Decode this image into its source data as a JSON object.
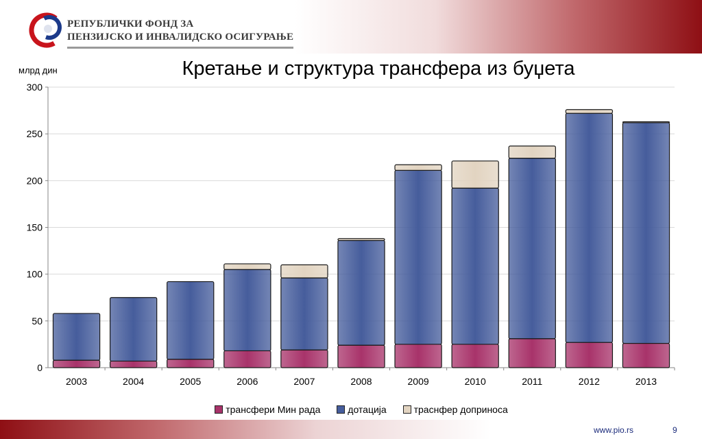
{
  "header": {
    "org_line1": "РЕПУБЛИЧКИ ФОНД ЗА",
    "org_line2": "ПЕНЗИЈСКО И ИНВАЛИДСКО ОСИГУРАЊЕ"
  },
  "footer": {
    "url": "www.pio.rs",
    "page": "9"
  },
  "colors": {
    "series1": "#a8336a",
    "series2": "#465d9c",
    "series3": "#e2d4c1",
    "brand_red": "#8e0f14"
  },
  "chart_data": {
    "type": "bar",
    "stacked": true,
    "title": "Кретање и структура трансфера из буџета",
    "ylabel": "млрд дин",
    "xlabel": "",
    "ylim": [
      0,
      300
    ],
    "yticks": [
      0,
      50,
      100,
      150,
      200,
      250,
      300
    ],
    "grid": true,
    "legend": "bottom",
    "categories": [
      "2003",
      "2004",
      "2005",
      "2006",
      "2007",
      "2008",
      "2009",
      "2010",
      "2011",
      "2012",
      "2013"
    ],
    "series": [
      {
        "name": "трансфери Мин рада",
        "values": [
          8,
          7,
          9,
          18,
          19,
          24,
          25,
          25,
          31,
          27,
          26
        ]
      },
      {
        "name": "дотација",
        "values": [
          50,
          68,
          83,
          87,
          77,
          112,
          186,
          167,
          193,
          245,
          236
        ]
      },
      {
        "name": "траснфер доприноса",
        "values": [
          0,
          0,
          0,
          6,
          14,
          2,
          6,
          29,
          13,
          4,
          1
        ]
      }
    ]
  }
}
